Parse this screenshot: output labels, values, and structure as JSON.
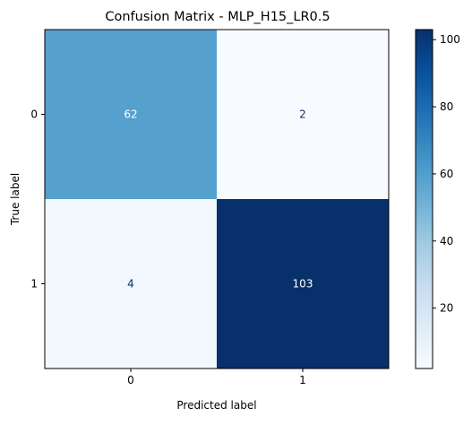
{
  "chart_data": {
    "type": "heatmap",
    "title": "Confusion Matrix - MLP_H15_LR0.5",
    "xlabel": "Predicted label",
    "ylabel": "True label",
    "x_categories": [
      "0",
      "1"
    ],
    "y_categories": [
      "0",
      "1"
    ],
    "values": [
      [
        62,
        2
      ],
      [
        4,
        103
      ]
    ],
    "colormap": "Blues",
    "colorbar": {
      "min": 2,
      "max": 103,
      "ticks": [
        20,
        40,
        60,
        80,
        100
      ],
      "tick_labels": [
        "20",
        "40",
        "60",
        "80",
        "100"
      ]
    },
    "colors": {
      "cell_0_0": "#56a0ce",
      "cell_0_1": "#f7fbff",
      "cell_1_0": "#f1f7fd",
      "cell_1_1": "#08306b",
      "label_on_dark": "#ffffff",
      "label_on_light": "#08306b"
    }
  }
}
